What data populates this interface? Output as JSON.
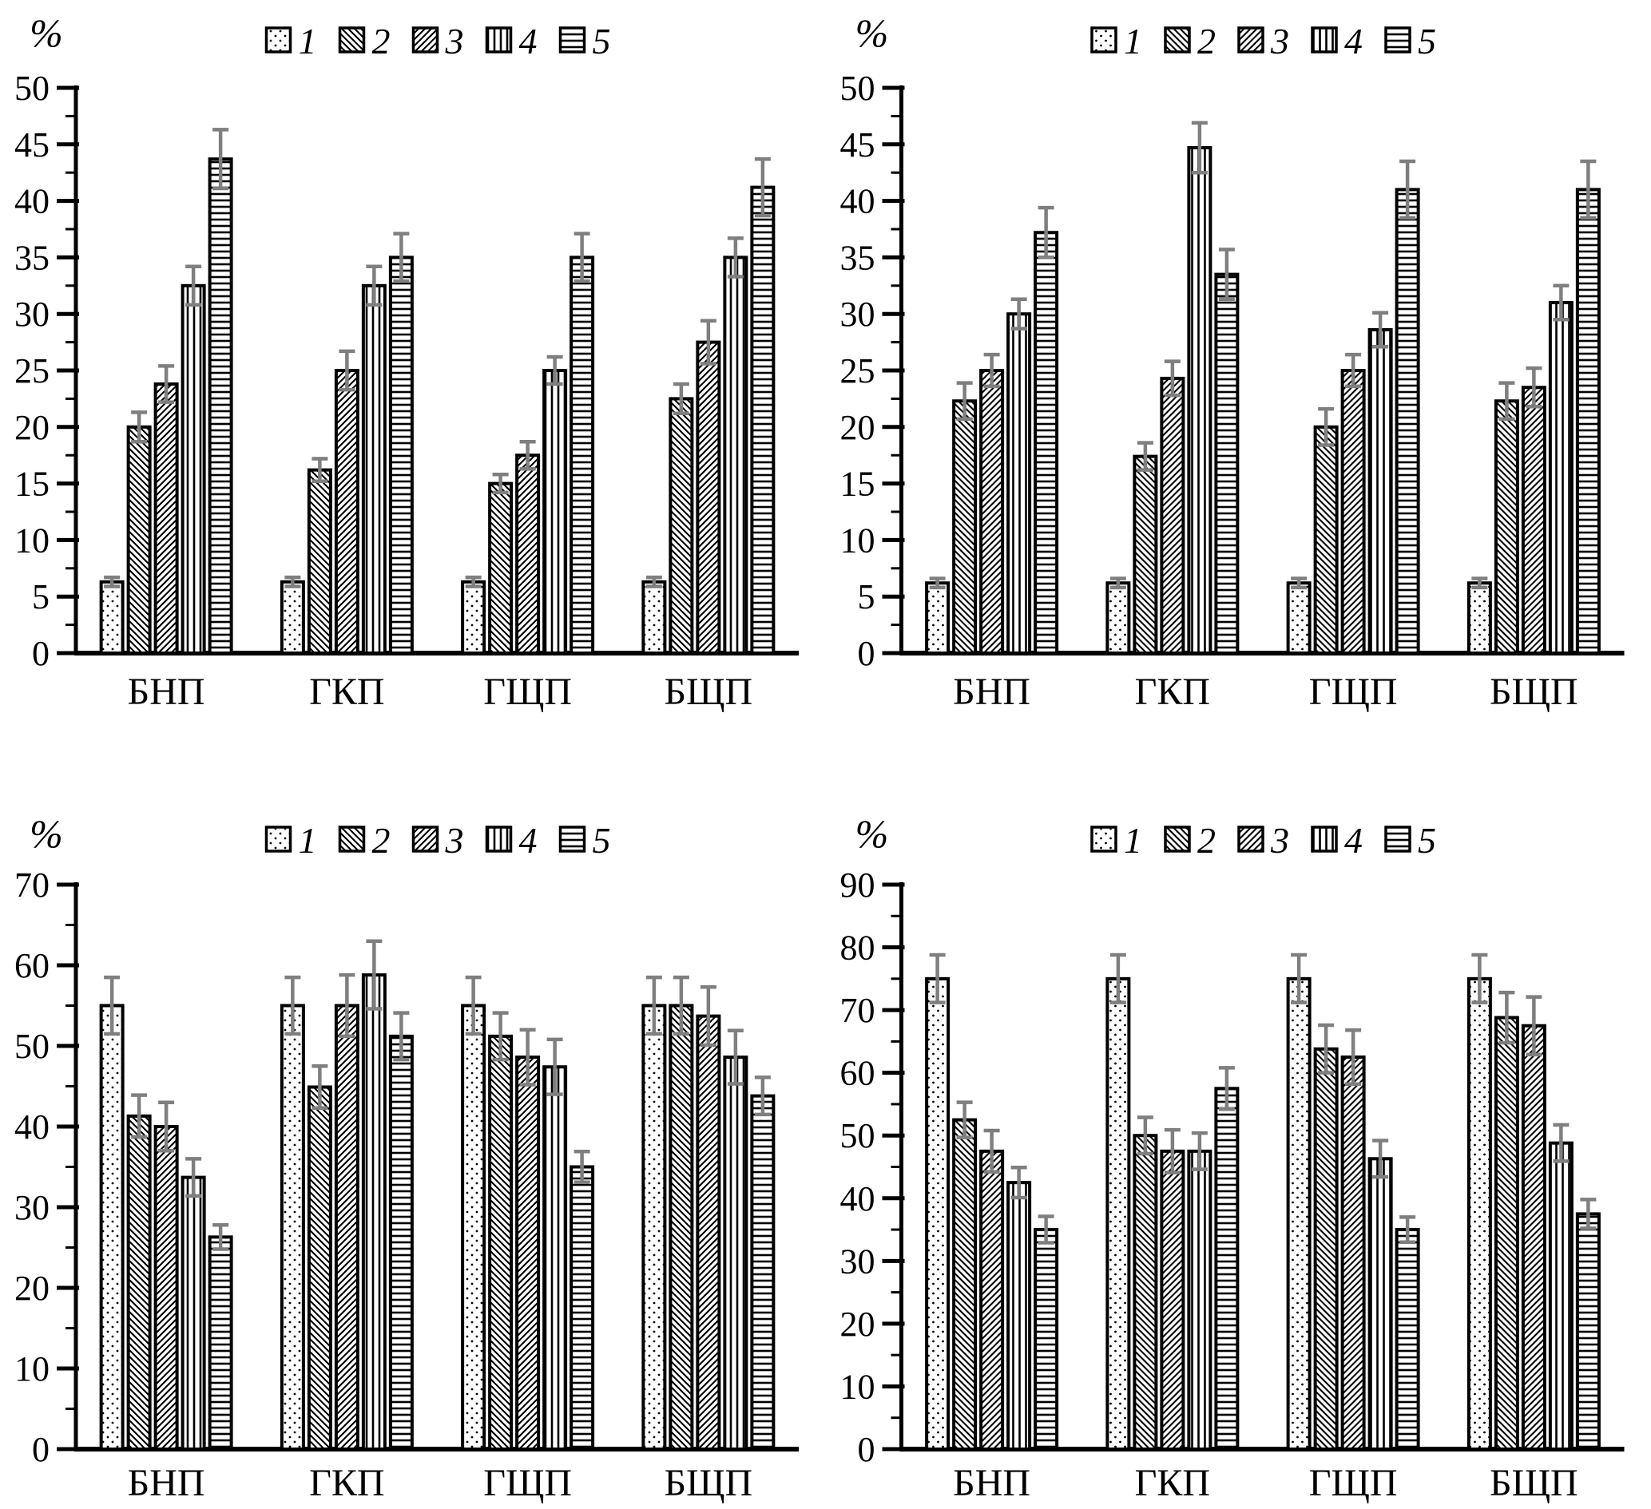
{
  "figure": {
    "y_axis_symbol": "%",
    "categories": [
      "БНП",
      "ГКП",
      "ГЩП",
      "БЩП"
    ],
    "legend": [
      {
        "label": "1",
        "pattern": "dots"
      },
      {
        "label": "2",
        "pattern": "diag-down"
      },
      {
        "label": "3",
        "pattern": "diag-up"
      },
      {
        "label": "4",
        "pattern": "vertical"
      },
      {
        "label": "5",
        "pattern": "horizontal"
      }
    ],
    "colors": {
      "bar_outline": "#000000",
      "pattern_fill": "#ffffff",
      "pattern_line": "#000000",
      "error_bar": "#7f7f7f",
      "axis": "#000000",
      "text": "#000000"
    }
  },
  "chart_data": [
    {
      "id": "top-left",
      "type": "bar",
      "ylabel": "%",
      "ylim": [
        0,
        50
      ],
      "ytick_step": 5,
      "yminor_step": 2.5,
      "grid": false,
      "legend_position": "top-center",
      "categories": [
        "БНП",
        "ГКП",
        "ГЩП",
        "БЩП"
      ],
      "series": [
        {
          "name": "1",
          "pattern": "dots",
          "values": [
            6.3,
            6.3,
            6.3,
            6.3
          ],
          "errors": [
            0.4,
            0.4,
            0.4,
            0.4
          ]
        },
        {
          "name": "2",
          "pattern": "diag-down",
          "values": [
            20.0,
            16.2,
            15.0,
            22.5
          ],
          "errors": [
            1.3,
            1.0,
            0.8,
            1.3
          ]
        },
        {
          "name": "3",
          "pattern": "diag-up",
          "values": [
            23.8,
            25.0,
            17.5,
            27.5
          ],
          "errors": [
            1.6,
            1.7,
            1.2,
            1.9
          ]
        },
        {
          "name": "4",
          "pattern": "vertical",
          "values": [
            32.5,
            32.5,
            25.0,
            35.0
          ],
          "errors": [
            1.7,
            1.7,
            1.2,
            1.7
          ]
        },
        {
          "name": "5",
          "pattern": "horizontal",
          "values": [
            43.7,
            35.0,
            35.0,
            41.2
          ],
          "errors": [
            2.6,
            2.1,
            2.1,
            2.5
          ]
        }
      ]
    },
    {
      "id": "top-right",
      "type": "bar",
      "ylabel": "%",
      "ylim": [
        0,
        50
      ],
      "ytick_step": 5,
      "yminor_step": 2.5,
      "grid": false,
      "legend_position": "top-center",
      "categories": [
        "БНП",
        "ГКП",
        "ГЩП",
        "БЩП"
      ],
      "series": [
        {
          "name": "1",
          "pattern": "dots",
          "values": [
            6.2,
            6.2,
            6.2,
            6.2
          ],
          "errors": [
            0.4,
            0.4,
            0.4,
            0.4
          ]
        },
        {
          "name": "2",
          "pattern": "diag-down",
          "values": [
            22.3,
            17.4,
            20.0,
            22.3
          ],
          "errors": [
            1.6,
            1.2,
            1.6,
            1.6
          ]
        },
        {
          "name": "3",
          "pattern": "diag-up",
          "values": [
            25.0,
            24.3,
            25.0,
            23.5
          ],
          "errors": [
            1.4,
            1.5,
            1.4,
            1.7
          ]
        },
        {
          "name": "4",
          "pattern": "vertical",
          "values": [
            30.0,
            44.7,
            28.6,
            31.0
          ],
          "errors": [
            1.3,
            2.2,
            1.5,
            1.5
          ]
        },
        {
          "name": "5",
          "pattern": "horizontal",
          "values": [
            37.2,
            33.5,
            41.0,
            41.0
          ],
          "errors": [
            2.2,
            2.2,
            2.5,
            2.5
          ]
        }
      ]
    },
    {
      "id": "bottom-left",
      "type": "bar",
      "ylabel": "%",
      "ylim": [
        0,
        70
      ],
      "ytick_step": 10,
      "yminor_step": 5,
      "grid": false,
      "legend_position": "top-center",
      "categories": [
        "БНП",
        "ГКП",
        "ГЩП",
        "БЩП"
      ],
      "series": [
        {
          "name": "1",
          "pattern": "dots",
          "values": [
            55.0,
            55.0,
            55.0,
            55.0
          ],
          "errors": [
            3.5,
            3.5,
            3.5,
            3.5
          ]
        },
        {
          "name": "2",
          "pattern": "diag-down",
          "values": [
            41.3,
            44.9,
            51.2,
            55.0
          ],
          "errors": [
            2.6,
            2.6,
            2.9,
            3.5
          ]
        },
        {
          "name": "3",
          "pattern": "diag-up",
          "values": [
            40.0,
            55.0,
            48.6,
            53.7
          ],
          "errors": [
            3.0,
            3.8,
            3.4,
            3.6
          ]
        },
        {
          "name": "4",
          "pattern": "vertical",
          "values": [
            33.7,
            58.8,
            47.4,
            48.6
          ],
          "errors": [
            2.3,
            4.2,
            3.4,
            3.3
          ]
        },
        {
          "name": "5",
          "pattern": "horizontal",
          "values": [
            26.3,
            51.2,
            35.0,
            43.8
          ],
          "errors": [
            1.5,
            2.9,
            1.9,
            2.3
          ]
        }
      ]
    },
    {
      "id": "bottom-right",
      "type": "bar",
      "ylabel": "%",
      "ylim": [
        0,
        90
      ],
      "ytick_step": 10,
      "yminor_step": 5,
      "grid": false,
      "legend_position": "top-center",
      "categories": [
        "БНП",
        "ГКП",
        "ГЩП",
        "БЩП"
      ],
      "series": [
        {
          "name": "1",
          "pattern": "dots",
          "values": [
            75.0,
            75.0,
            75.0,
            75.0
          ],
          "errors": [
            3.8,
            3.8,
            3.8,
            3.8
          ]
        },
        {
          "name": "2",
          "pattern": "diag-down",
          "values": [
            52.5,
            50.0,
            63.8,
            68.8
          ],
          "errors": [
            2.8,
            2.9,
            3.8,
            4.0
          ]
        },
        {
          "name": "3",
          "pattern": "diag-up",
          "values": [
            47.5,
            47.5,
            62.5,
            67.5
          ],
          "errors": [
            3.3,
            3.4,
            4.3,
            4.6
          ]
        },
        {
          "name": "4",
          "pattern": "vertical",
          "values": [
            42.5,
            47.5,
            46.3,
            48.8
          ],
          "errors": [
            2.4,
            2.9,
            2.9,
            2.9
          ]
        },
        {
          "name": "5",
          "pattern": "horizontal",
          "values": [
            35.0,
            57.5,
            35.0,
            37.5
          ],
          "errors": [
            2.1,
            3.3,
            2.0,
            2.3
          ]
        }
      ]
    }
  ]
}
